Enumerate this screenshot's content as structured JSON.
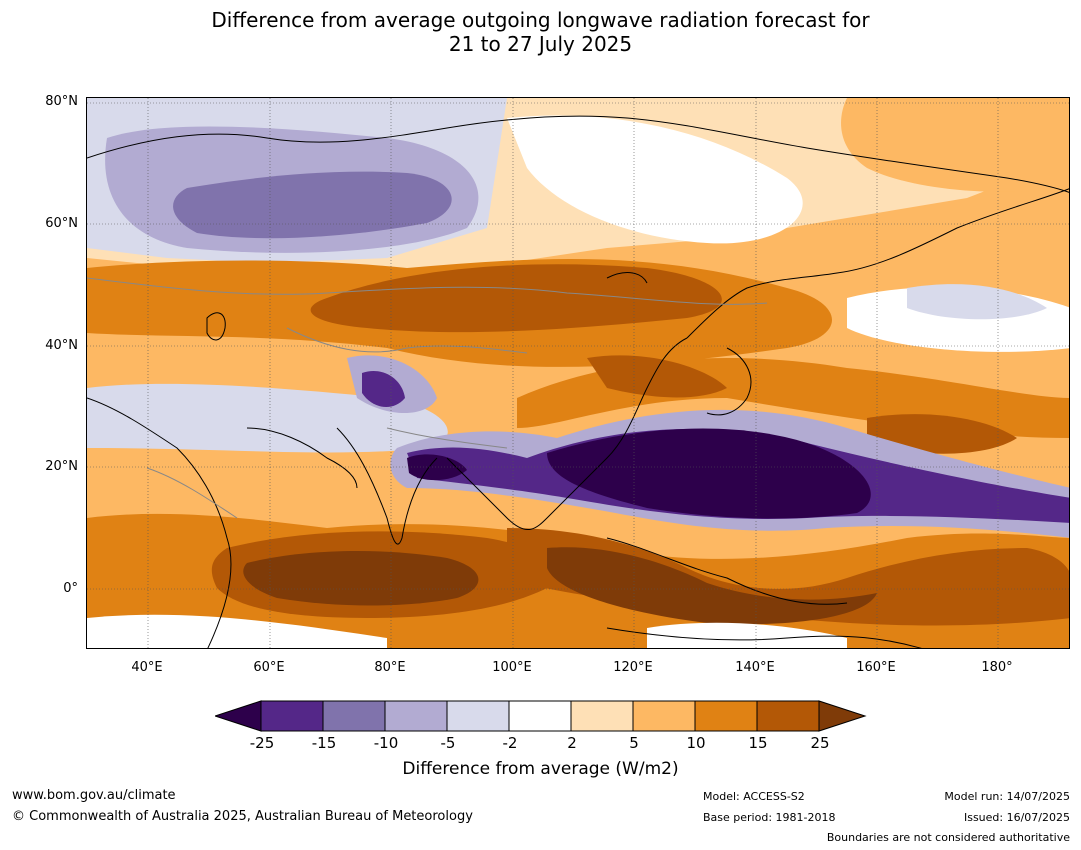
{
  "title_line1": "Difference from average outgoing longwave radiation forecast for",
  "title_line2": "21 to 27 July 2025",
  "lat_labels": [
    "80°N",
    "60°N",
    "40°N",
    "20°N",
    "0°"
  ],
  "lon_labels": [
    "40°E",
    "60°E",
    "80°E",
    "100°E",
    "120°E",
    "140°E",
    "160°E",
    "180°"
  ],
  "colorbar": {
    "ticks": [
      "-25",
      "-15",
      "-10",
      "-5",
      "-2",
      "2",
      "5",
      "10",
      "15",
      "25"
    ],
    "colors": [
      "#2d004b",
      "#542788",
      "#8073ac",
      "#b2abd2",
      "#d8daeb",
      "#ffffff",
      "#fee0b6",
      "#fdb863",
      "#e08214",
      "#b35806",
      "#7f3b08"
    ],
    "title": "Difference from average (W/m2)"
  },
  "footer": {
    "url": "www.bom.gov.au/climate",
    "copyright": "© Commonwealth of Australia 2025, Australian Bureau of Meteorology",
    "model": "Model: ACCESS-S2",
    "base_period": "Base period: 1981-2018",
    "model_run": "Model run: 14/07/2025",
    "issued": "Issued: 16/07/2025",
    "boundaries": "Boundaries are not considered authoritative"
  }
}
